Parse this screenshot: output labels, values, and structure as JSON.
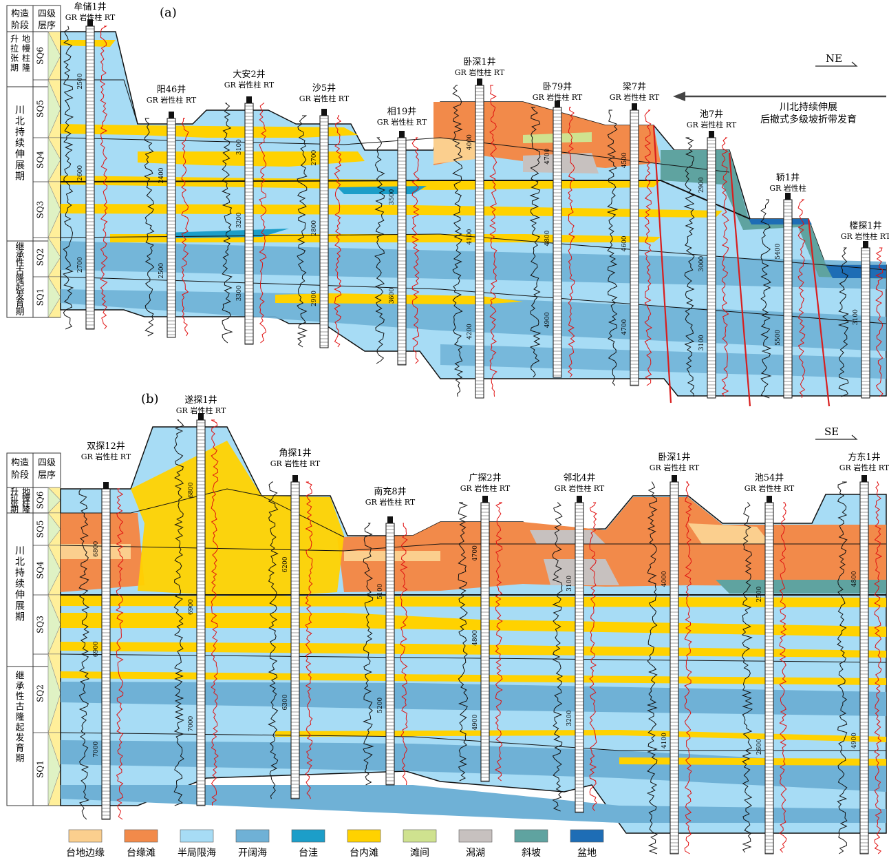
{
  "panel_a": {
    "label": "(a)",
    "direction": "NE",
    "annotation": [
      "川北持续伸展",
      "后撤式多级坡折带发育"
    ],
    "stratigraphy_header": [
      "构造",
      "阶段",
      "四级",
      "层序"
    ],
    "stages": [
      {
        "name": "升拉张期",
        "sub": "地幔柱隆",
        "sequences": [
          "SQ6"
        ]
      },
      {
        "name": "川北持续伸展期",
        "sequences": [
          "SQ5",
          "SQ4",
          "SQ3"
        ]
      },
      {
        "name": "继承性古隆起发育期",
        "sequences": [
          "SQ2",
          "SQ1"
        ]
      }
    ],
    "wells": [
      {
        "name": "牟储1井",
        "log_header": "GR 岩性柱 RT",
        "depths": [
          "2500",
          "2600",
          "2700"
        ]
      },
      {
        "name": "阳46井",
        "log_header": "GR 岩性柱 RT",
        "depths": [
          "2400",
          "2500"
        ]
      },
      {
        "name": "大安2井",
        "log_header": "GR 岩性柱 RT",
        "depths": [
          "3100",
          "3200",
          "3300"
        ]
      },
      {
        "name": "沙5井",
        "log_header": "GR 岩性柱 RT",
        "depths": [
          "2700",
          "2800",
          "2900"
        ]
      },
      {
        "name": "相19井",
        "log_header": "GR 岩性柱 RT",
        "depths": [
          "3500",
          "3600"
        ]
      },
      {
        "name": "卧深1井",
        "log_header": "GR 岩性柱 RT",
        "depths": [
          "4000",
          "4100",
          "4200"
        ]
      },
      {
        "name": "卧79井",
        "log_header": "GR 岩性柱 RT",
        "depths": [
          "4700",
          "4800",
          "4900"
        ]
      },
      {
        "name": "梁7井",
        "log_header": "GR 岩性柱 RT",
        "depths": [
          "4500",
          "4600",
          "4700"
        ]
      },
      {
        "name": "池7井",
        "log_header": "GR 岩性柱 RT",
        "depths": [
          "2900",
          "3000",
          "3100"
        ]
      },
      {
        "name": "轿1井",
        "log_header": "GR 岩性柱",
        "depths": [
          "5400",
          "5500"
        ]
      },
      {
        "name": "楼探1井",
        "log_header": "GR 岩性柱 RT",
        "depths": [
          "3100"
        ]
      }
    ]
  },
  "panel_b": {
    "label": "(b)",
    "direction": "SE",
    "stratigraphy_header": [
      "构造",
      "阶段",
      "四级",
      "层序"
    ],
    "stages": [
      {
        "name": "升拉张期",
        "sub": "地幔柱隆",
        "sequences": [
          "SQ6"
        ]
      },
      {
        "name": "川北持续伸展期",
        "sequences": [
          "SQ5",
          "SQ4",
          "SQ3"
        ]
      },
      {
        "name": "继承性古隆起发育期",
        "sequences": [
          "SQ2",
          "SQ1"
        ]
      }
    ],
    "wells": [
      {
        "name": "双探12井",
        "log_header": "GR 岩性柱 RT",
        "depths": [
          "6800",
          "6900",
          "7000"
        ]
      },
      {
        "name": "遂探1井",
        "log_header": "GR 岩性柱 RT",
        "depths": [
          "6800",
          "6900",
          "7000"
        ]
      },
      {
        "name": "角探1井",
        "log_header": "GR 岩性柱 RT",
        "depths": [
          "6200",
          "6300"
        ]
      },
      {
        "name": "南充8井",
        "log_header": "GR 岩性柱 RT",
        "depths": [
          "5100",
          "5200"
        ]
      },
      {
        "name": "广探2井",
        "log_header": "GR 岩性柱 RT",
        "depths": [
          "4700",
          "4800",
          "4900"
        ]
      },
      {
        "name": "邻北4井",
        "log_header": "GR 岩性柱 RT",
        "depths": [
          "3100",
          "3200"
        ]
      },
      {
        "name": "卧深1井",
        "log_header": "GR 岩性柱 RT",
        "depths": [
          "4000",
          "4100"
        ]
      },
      {
        "name": "池54井",
        "log_header": "GR 岩性柱 RT",
        "depths": [
          "2500",
          "2600"
        ]
      },
      {
        "name": "方东1井",
        "log_header": "GR 岩性柱 RT",
        "depths": [
          "4800",
          "4900"
        ]
      }
    ]
  },
  "legend": [
    {
      "label": "台地边缘",
      "color": "#fbcf8e"
    },
    {
      "label": "台缘滩",
      "color": "#f28a4a"
    },
    {
      "label": "半局限海",
      "color": "#a7dcf5"
    },
    {
      "label": "开阔海",
      "color": "#6fb1d6"
    },
    {
      "label": "台洼",
      "color": "#1c9ec9"
    },
    {
      "label": "台内滩",
      "color": "#ffd200"
    },
    {
      "label": "滩间",
      "color": "#cfe28f"
    },
    {
      "label": "潟湖",
      "color": "#c7c1bf"
    },
    {
      "label": "斜坡",
      "color": "#5fa3a0"
    },
    {
      "label": "盆地",
      "color": "#1e6db5"
    }
  ]
}
